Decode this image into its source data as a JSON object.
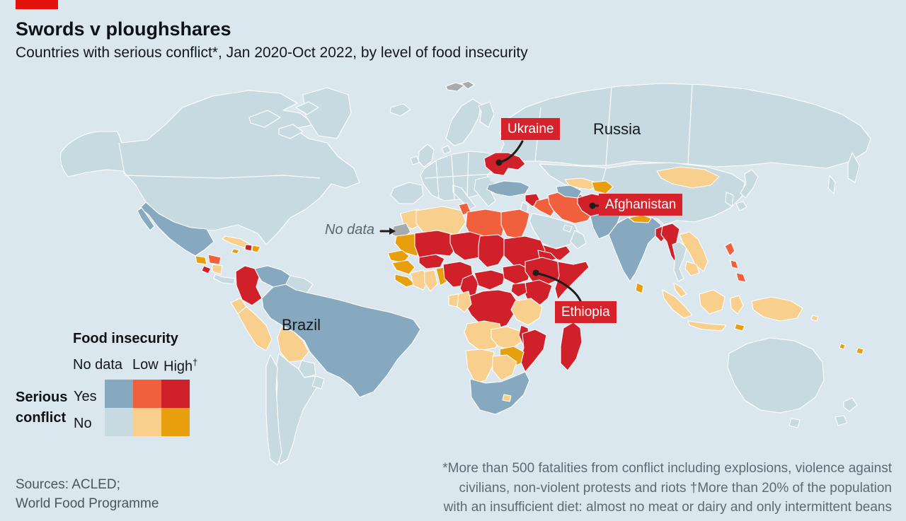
{
  "header": {
    "title": "Swords v ploughshares",
    "subtitle": "Countries with serious conflict*, Jan 2020-Oct 2022, by level of food insecurity"
  },
  "colors": {
    "brand_red": "#e3120b",
    "background": "#dbe7ee",
    "land": "#c7d9e1",
    "conflict_nodata": "#86a9bf",
    "conflict_low": "#f1603d",
    "conflict_high": "#d0202a",
    "noconflict_low": "#f8cf8c",
    "noconflict_high": "#e89f0d",
    "nodata_country": "#a6abb0",
    "label_box": "#d6232b"
  },
  "legend": {
    "title": "Food insecurity",
    "col_headers": [
      "No data",
      "Low",
      "High"
    ],
    "dagger": "†",
    "group_label_line1": "Serious",
    "group_label_line2": "conflict",
    "rows": [
      {
        "label": "Yes",
        "cells": [
          "conflict_nodata",
          "conflict_low",
          "conflict_high"
        ]
      },
      {
        "label": "No",
        "cells": [
          "land",
          "noconflict_low",
          "noconflict_high"
        ]
      }
    ]
  },
  "map_labels": {
    "ukraine": "Ukraine",
    "russia": "Russia",
    "afghanistan": "Afghanistan",
    "ethiopia": "Ethiopia",
    "brazil": "Brazil",
    "no_data": "No data"
  },
  "map": {
    "countries": {
      "north_america": "land",
      "greenland": "land",
      "arctic1": "land",
      "arctic2": "land",
      "arctic3": "land",
      "svalbard": "nodata_country",
      "iceland": "land",
      "uk": "land",
      "ireland": "land",
      "norway_sweden": "land",
      "finland": "land",
      "denmark": "land",
      "europe_mainland": "land",
      "iberia": "land",
      "italy": "land",
      "balkans": "land",
      "russia": "land",
      "kamchatka": "land",
      "sakhalin": "land",
      "kazakhstan": "land",
      "mexico": "conflict_nodata",
      "baja": "conflict_nodata",
      "guatemala": "noconflict_high",
      "honduras": "conflict_low",
      "el_salvador": "conflict_high",
      "nicaragua": "noconflict_low",
      "costa_rica_panama": "land",
      "cuba": "noconflict_low",
      "jamaica": "noconflict_high",
      "haiti": "conflict_high",
      "dominican_republic": "noconflict_high",
      "colombia": "conflict_high",
      "venezuela": "conflict_nodata",
      "guyanas": "land",
      "brazil": "conflict_nodata",
      "ecuador": "noconflict_low",
      "peru": "noconflict_low",
      "bolivia": "noconflict_low",
      "paraguay": "land",
      "argentina": "land",
      "uruguay": "land",
      "chile": "land",
      "ukraine": "conflict_high",
      "turkey": "conflict_nodata",
      "syria": "conflict_high",
      "levant": "land",
      "iraq": "conflict_low",
      "iran": "conflict_low",
      "saudi_arabia": "land",
      "yemen": "conflict_high",
      "oman": "land",
      "gulf_states": "land",
      "turkmenistan": "conflict_nodata",
      "uzbekistan": "noconflict_low",
      "kyrgyzstan_tajikistan": "noconflict_high",
      "afghanistan": "conflict_high",
      "pakistan": "conflict_nodata",
      "india": "conflict_nodata",
      "nepal": "noconflict_high",
      "bangladesh": "conflict_high",
      "sri_lanka": "noconflict_high",
      "china": "land",
      "mongolia": "noconflict_low",
      "korea": "land",
      "japan1": "land",
      "japan2": "land",
      "myanmar": "conflict_high",
      "thailand": "land",
      "laos_vietnam": "noconflict_low",
      "cambodia": "noconflict_low",
      "malay_peninsula": "noconflict_low",
      "sumatra": "noconflict_low",
      "java": "noconflict_low",
      "borneo": "noconflict_low",
      "sulawesi": "noconflict_low",
      "timor": "noconflict_high",
      "papua": "noconflict_low",
      "solomon": "noconflict_low",
      "philippines1": "conflict_low",
      "philippines2": "conflict_low",
      "philippines3": "conflict_low",
      "australia": "land",
      "tasmania": "land",
      "nz_north": "land",
      "nz_south": "land",
      "fiji": "noconflict_high",
      "vanuatu": "noconflict_high",
      "morocco": "noconflict_low",
      "western_sahara": "nodata_country",
      "algeria": "noconflict_low",
      "tunisia": "conflict_low",
      "libya": "conflict_low",
      "egypt": "conflict_low",
      "mauritania": "noconflict_high",
      "senegal": "noconflict_high",
      "guinea": "noconflict_high",
      "sierra_leone_liberia": "noconflict_high",
      "ivory_coast": "noconflict_low",
      "ghana": "noconflict_low",
      "togo_benin": "noconflict_high",
      "burkina_faso": "conflict_high",
      "mali": "conflict_high",
      "niger": "conflict_high",
      "nigeria": "conflict_high",
      "chad": "conflict_high",
      "sudan": "conflict_high",
      "eritrea": "conflict_high",
      "cameroon": "conflict_high",
      "central_african_republic": "conflict_high",
      "south_sudan": "conflict_high",
      "ethiopia": "conflict_high",
      "somalia": "conflict_high",
      "kenya": "conflict_high",
      "uganda": "conflict_high",
      "rwanda_burundi": "conflict_high",
      "drc": "conflict_high",
      "congo": "noconflict_low",
      "gabon": "noconflict_low",
      "tanzania": "noconflict_low",
      "angola": "noconflict_low",
      "zambia": "noconflict_low",
      "malawi": "conflict_high",
      "mozambique": "conflict_high",
      "zimbabwe": "noconflict_high",
      "namibia": "noconflict_low",
      "botswana": "noconflict_low",
      "south_africa": "conflict_nodata",
      "lesotho": "noconflict_low",
      "madagascar": "conflict_high"
    }
  },
  "footer": {
    "sources_line1": "Sources: ACLED;",
    "sources_line2": "World Food Programme",
    "footnote_line1": "*More than 500 fatalities from conflict including explosions, violence against",
    "footnote_line2": "civilians, non-violent protests and riots   †More than 20% of the population",
    "footnote_line3": "with an insufficient diet: almost no meat or dairy and only intermittent beans"
  }
}
